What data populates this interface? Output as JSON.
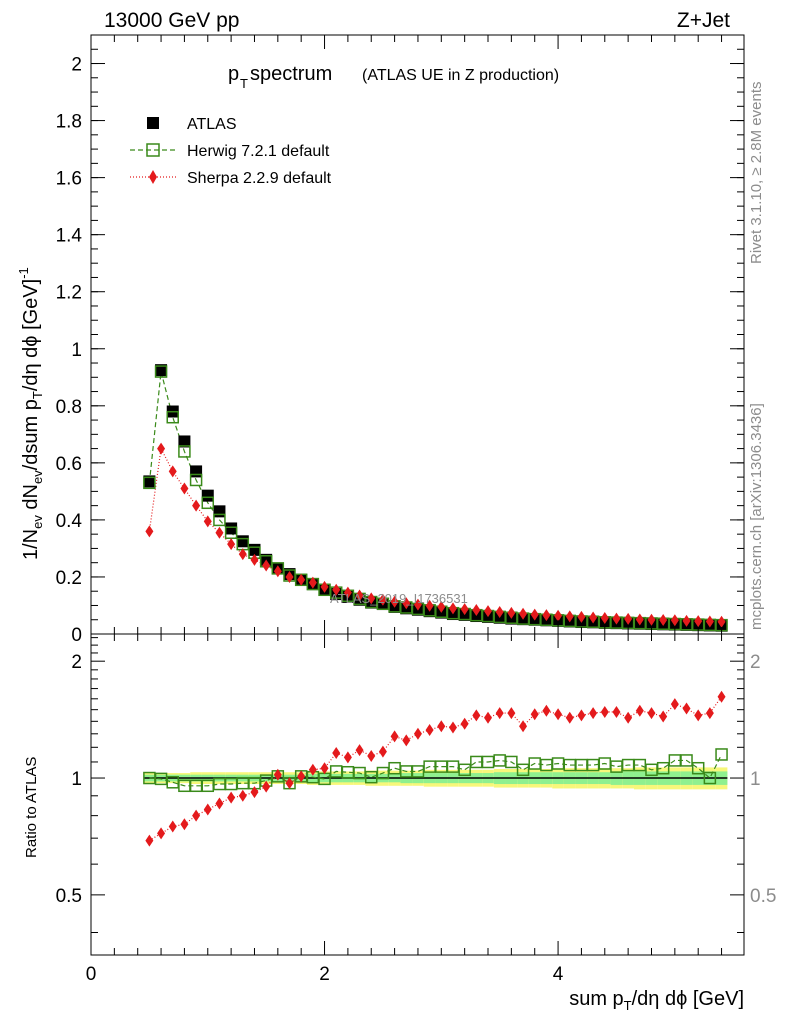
{
  "header": {
    "energy": "13000 GeV pp",
    "process": "Z+Jet"
  },
  "side_text": {
    "rivet": "Rivet 3.1.10, ≥ 2.8M events",
    "mcplots": "mcplots.cern.ch [arXiv:1306.3436]"
  },
  "watermark": "ATLAS_2019_I1736531",
  "colors": {
    "atlas": "#000000",
    "herwig": "#3a8a1a",
    "sherpa": "#e41a1c",
    "band_inner": "#8ff08f",
    "band_outer": "#f7f77a"
  },
  "chart_data": [
    {
      "type": "scatter",
      "title": "p_T spectrum (ATLAS UE in Z production)",
      "title_main": "p",
      "title_sub": "T",
      "title_rest": " spectrum",
      "title_small": "(ATLAS UE in Z production)",
      "xlabel": "sum p_T/dη dϕ [GeV]",
      "ylabel": "1/N_ev dN_ev/dsum p_T/dη dϕ [GeV]^-1",
      "xlim": [
        0,
        5.5
      ],
      "ylim": [
        0,
        2.1
      ],
      "y_ticks": [
        "0",
        "0.2",
        "0.4",
        "0.6",
        "0.8",
        "1",
        "1.2",
        "1.4",
        "1.6",
        "1.8",
        "2"
      ],
      "x": [
        0.5,
        0.6,
        0.7,
        0.8,
        0.9,
        1.0,
        1.1,
        1.2,
        1.3,
        1.4,
        1.5,
        1.6,
        1.7,
        1.8,
        1.9,
        2.0,
        2.1,
        2.2,
        2.3,
        2.4,
        2.5,
        2.6,
        2.7,
        2.8,
        2.9,
        3.0,
        3.1,
        3.2,
        3.3,
        3.4,
        3.5,
        3.6,
        3.7,
        3.8,
        3.9,
        4.0,
        4.1,
        4.2,
        4.3,
        4.4,
        4.5,
        4.6,
        4.7,
        4.8,
        4.9,
        5.0,
        5.1,
        5.2,
        5.3,
        5.4
      ],
      "series": [
        {
          "name": "ATLAS",
          "marker": "square-filled",
          "values": [
            0.535,
            0.925,
            0.78,
            0.675,
            0.57,
            0.485,
            0.43,
            0.37,
            0.325,
            0.295,
            0.26,
            0.23,
            0.21,
            0.19,
            0.175,
            0.155,
            0.14,
            0.13,
            0.12,
            0.11,
            0.105,
            0.095,
            0.09,
            0.085,
            0.08,
            0.075,
            0.07,
            0.067,
            0.063,
            0.06,
            0.057,
            0.054,
            0.052,
            0.05,
            0.048,
            0.046,
            0.044,
            0.042,
            0.041,
            0.039,
            0.038,
            0.037,
            0.036,
            0.035,
            0.034,
            0.033,
            0.032,
            0.031,
            0.03,
            0.029
          ]
        },
        {
          "name": "Herwig 7.2.1 default",
          "marker": "square-open",
          "line": "dashed",
          "values": [
            0.53,
            0.92,
            0.76,
            0.64,
            0.54,
            0.46,
            0.4,
            0.355,
            0.315,
            0.285,
            0.255,
            0.23,
            0.205,
            0.19,
            0.175,
            0.155,
            0.145,
            0.134,
            0.123,
            0.112,
            0.106,
            0.097,
            0.093,
            0.088,
            0.083,
            0.078,
            0.073,
            0.07,
            0.066,
            0.063,
            0.06,
            0.057,
            0.054,
            0.052,
            0.05,
            0.048,
            0.046,
            0.044,
            0.043,
            0.041,
            0.04,
            0.039,
            0.038,
            0.037,
            0.036,
            0.035,
            0.034,
            0.033,
            0.032,
            0.031
          ]
        },
        {
          "name": "Sherpa 2.2.9 default",
          "marker": "diamond-filled",
          "line": "dotted",
          "values": [
            0.36,
            0.65,
            0.57,
            0.51,
            0.45,
            0.395,
            0.355,
            0.315,
            0.28,
            0.26,
            0.24,
            0.22,
            0.2,
            0.19,
            0.18,
            0.165,
            0.155,
            0.145,
            0.135,
            0.125,
            0.12,
            0.113,
            0.108,
            0.103,
            0.099,
            0.095,
            0.09,
            0.087,
            0.084,
            0.08,
            0.077,
            0.074,
            0.071,
            0.068,
            0.066,
            0.064,
            0.062,
            0.06,
            0.058,
            0.056,
            0.054,
            0.053,
            0.051,
            0.05,
            0.049,
            0.048,
            0.046,
            0.045,
            0.044,
            0.043
          ]
        }
      ],
      "legend": [
        "ATLAS",
        "Herwig 7.2.1 default",
        "Sherpa 2.2.9 default"
      ],
      "legend_position": "top-left"
    },
    {
      "type": "scatter",
      "ylabel": "Ratio to ATLAS",
      "xlim": [
        0,
        5.5
      ],
      "ylim": [
        0.35,
        2.35
      ],
      "y_scale": "log",
      "y_ticks_left": [
        "0.5",
        "1",
        "2"
      ],
      "y_ticks_right": [
        "0.5",
        "1",
        "2"
      ],
      "x_ticks": [
        "0",
        "2",
        "4"
      ],
      "x": [
        0.5,
        0.6,
        0.7,
        0.8,
        0.9,
        1.0,
        1.1,
        1.2,
        1.3,
        1.4,
        1.5,
        1.6,
        1.7,
        1.8,
        1.9,
        2.0,
        2.1,
        2.2,
        2.3,
        2.4,
        2.5,
        2.6,
        2.7,
        2.8,
        2.9,
        3.0,
        3.1,
        3.2,
        3.3,
        3.4,
        3.5,
        3.6,
        3.7,
        3.8,
        3.9,
        4.0,
        4.1,
        4.2,
        4.3,
        4.4,
        4.5,
        4.6,
        4.7,
        4.8,
        4.9,
        5.0,
        5.1,
        5.2,
        5.3,
        5.4
      ],
      "band_inner": [
        0.02,
        0.02,
        0.02,
        0.02,
        0.02,
        0.02,
        0.02,
        0.02,
        0.02,
        0.02,
        0.02,
        0.02,
        0.02,
        0.02,
        0.025,
        0.025,
        0.025,
        0.025,
        0.025,
        0.025,
        0.025,
        0.025,
        0.03,
        0.03,
        0.03,
        0.03,
        0.03,
        0.03,
        0.03,
        0.03,
        0.035,
        0.035,
        0.035,
        0.035,
        0.035,
        0.035,
        0.035,
        0.035,
        0.035,
        0.035,
        0.04,
        0.04,
        0.04,
        0.04,
        0.04,
        0.04,
        0.04,
        0.04,
        0.04,
        0.04
      ],
      "band_outer": [
        0.03,
        0.03,
        0.03,
        0.03,
        0.035,
        0.035,
        0.035,
        0.035,
        0.035,
        0.035,
        0.035,
        0.035,
        0.035,
        0.035,
        0.04,
        0.04,
        0.04,
        0.04,
        0.04,
        0.045,
        0.045,
        0.045,
        0.045,
        0.045,
        0.05,
        0.05,
        0.05,
        0.05,
        0.05,
        0.05,
        0.055,
        0.055,
        0.055,
        0.055,
        0.055,
        0.06,
        0.06,
        0.06,
        0.06,
        0.06,
        0.06,
        0.06,
        0.065,
        0.065,
        0.065,
        0.065,
        0.065,
        0.065,
        0.065,
        0.065
      ],
      "series": [
        {
          "name": "Herwig 7.2.1 default",
          "values": [
            1.0,
            0.995,
            0.975,
            0.955,
            0.955,
            0.955,
            0.965,
            0.965,
            0.97,
            0.97,
            0.985,
            1.01,
            0.97,
            1.01,
            1.005,
            0.995,
            1.04,
            1.035,
            1.03,
            1.005,
            1.03,
            1.06,
            1.04,
            1.04,
            1.07,
            1.07,
            1.07,
            1.05,
            1.1,
            1.1,
            1.11,
            1.1,
            1.05,
            1.09,
            1.08,
            1.09,
            1.08,
            1.08,
            1.08,
            1.09,
            1.07,
            1.08,
            1.08,
            1.05,
            1.06,
            1.11,
            1.11,
            1.06,
            1.0,
            1.15
          ]
        },
        {
          "name": "Sherpa 2.2.9 default",
          "values": [
            0.69,
            0.72,
            0.75,
            0.76,
            0.8,
            0.83,
            0.86,
            0.89,
            0.9,
            0.92,
            0.95,
            1.02,
            0.97,
            1.01,
            1.05,
            1.06,
            1.16,
            1.13,
            1.18,
            1.14,
            1.17,
            1.28,
            1.25,
            1.3,
            1.33,
            1.36,
            1.35,
            1.38,
            1.45,
            1.43,
            1.47,
            1.47,
            1.36,
            1.46,
            1.49,
            1.46,
            1.43,
            1.45,
            1.47,
            1.48,
            1.48,
            1.43,
            1.49,
            1.47,
            1.44,
            1.55,
            1.51,
            1.45,
            1.47,
            1.62
          ]
        }
      ]
    }
  ]
}
